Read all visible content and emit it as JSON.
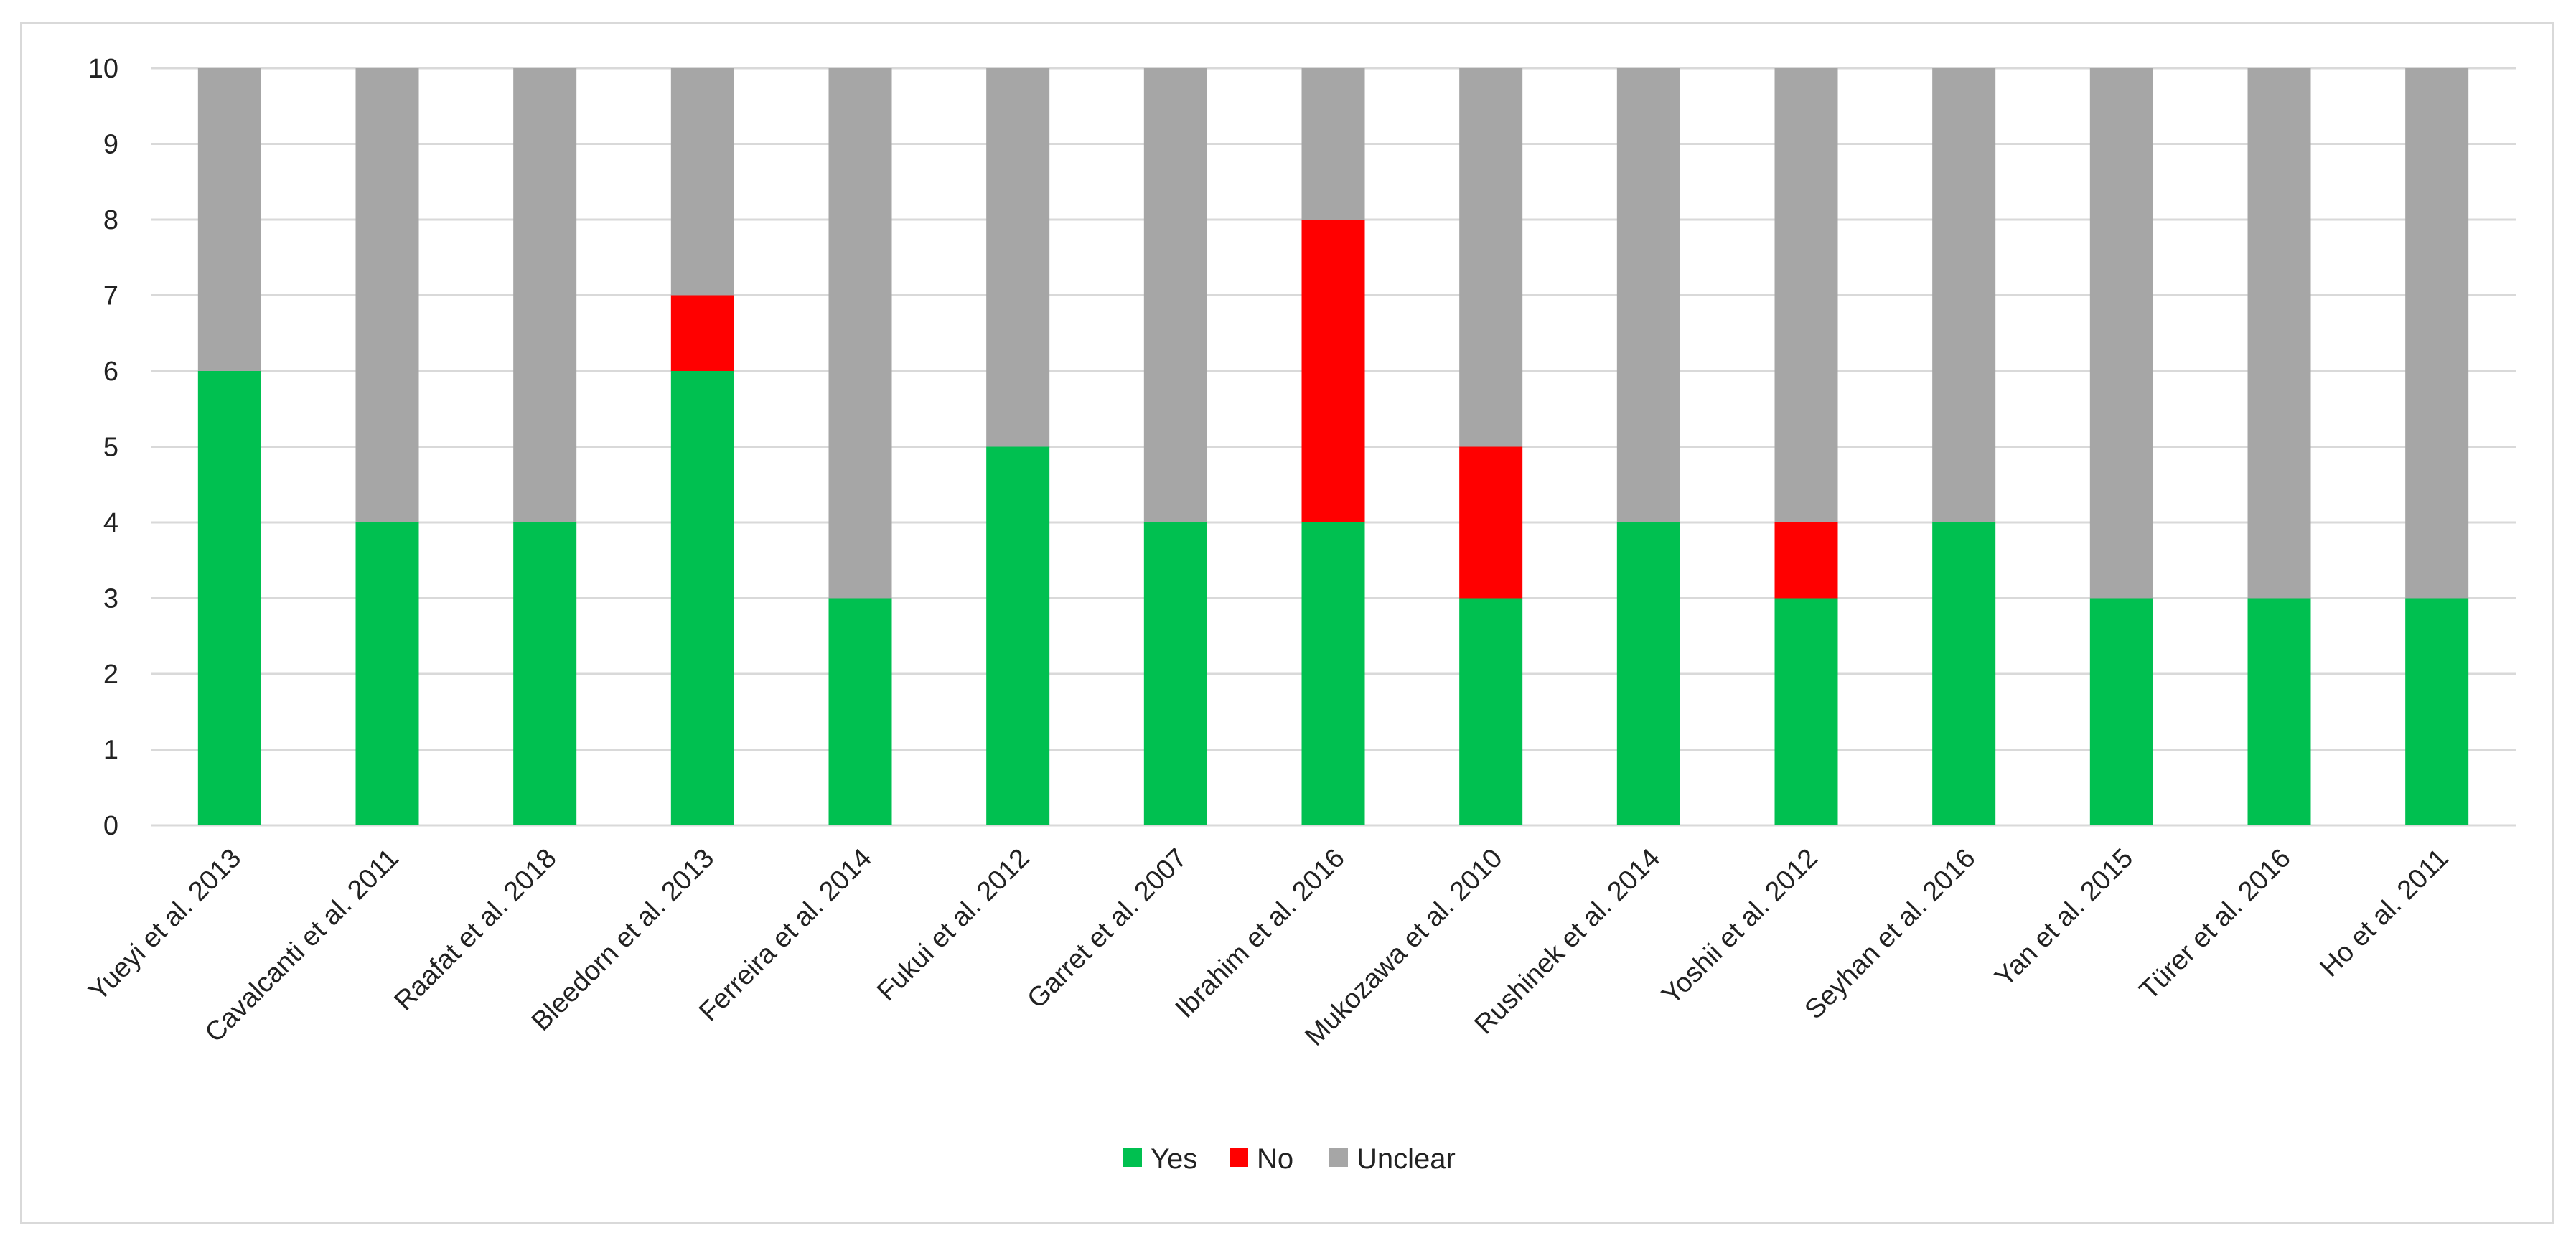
{
  "chart_data": {
    "type": "bar",
    "stacked": true,
    "categories": [
      "Yueyi et al. 2013",
      "Cavalcanti et al. 2011",
      "Raafat et al. 2018",
      "Bleedorn et al. 2013",
      "Ferreira et al. 2014",
      "Fukui et al. 2012",
      "Garret et al. 2007",
      "Ibrahim et al. 2016",
      "Mukozawa et al. 2010",
      "Rushinek et al. 2014",
      "Yoshii et al. 2012",
      "Seyhan et al. 2016",
      "Yan et al. 2015",
      "Türer et al. 2016",
      "Ho et al. 2011"
    ],
    "series": [
      {
        "name": "Yes",
        "color": "#00c050",
        "values": [
          6,
          4,
          4,
          6,
          3,
          5,
          4,
          4,
          3,
          4,
          3,
          4,
          3,
          3,
          3
        ]
      },
      {
        "name": "No",
        "color": "#ff0000",
        "values": [
          0,
          0,
          0,
          1,
          0,
          0,
          0,
          4,
          2,
          0,
          1,
          0,
          0,
          0,
          0
        ]
      },
      {
        "name": "Unclear",
        "color": "#a6a6a6",
        "values": [
          4,
          6,
          6,
          3,
          7,
          5,
          6,
          2,
          5,
          6,
          6,
          6,
          7,
          7,
          7
        ]
      }
    ],
    "ylim": [
      0,
      10
    ],
    "yticks": [
      "0",
      "1",
      "2",
      "3",
      "4",
      "5",
      "6",
      "7",
      "8",
      "9",
      "10"
    ],
    "grid": true,
    "legend": "bottom",
    "title": "",
    "xlabel": "",
    "ylabel": ""
  }
}
